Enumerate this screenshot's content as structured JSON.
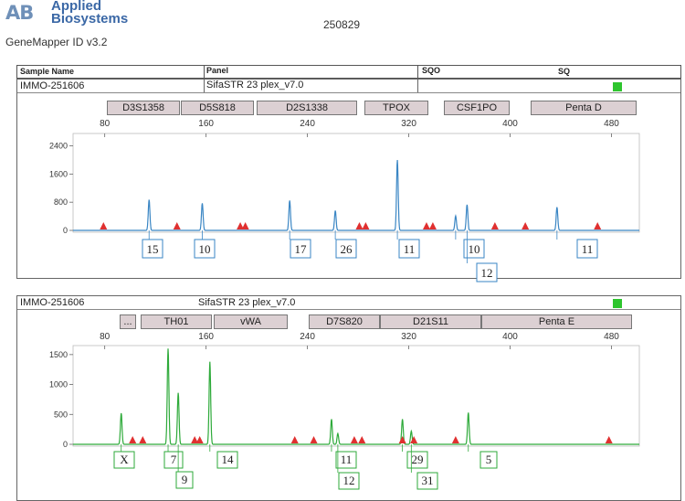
{
  "header": {
    "logo_mark": "AB",
    "logo_line1": "Applied",
    "logo_line2": "Biosystems",
    "software": "GeneMapper ID v3.2",
    "run_id": "250829"
  },
  "table_header": {
    "sample_name": "Sample Name",
    "panel": "Panel",
    "sqo": "SQO",
    "sq": "SQ"
  },
  "colors": {
    "blue_trace": "#3a86c4",
    "green_trace": "#2eaa3a",
    "marker_triangle": "#e03030",
    "status_ok": "#2ec52e",
    "marker_fill": "#dcd0d3"
  },
  "chart_data": [
    {
      "type": "line",
      "sample": "IMMO-251606",
      "panel": "SifaSTR 23 plex_v7.0",
      "dye": "blue",
      "markers": [
        "D3S1358",
        "D5S818",
        "D2S1338",
        "TPOX",
        "CSF1PO",
        "Penta D"
      ],
      "x_ticks": [
        80,
        160,
        240,
        320,
        400,
        480
      ],
      "y_ticks": [
        0,
        800,
        1600,
        2400
      ],
      "ylim": [
        0,
        2700
      ],
      "xlim": [
        55,
        502
      ],
      "peaks": [
        {
          "x": 115,
          "y": 870,
          "allele": "15"
        },
        {
          "x": 157,
          "y": 770,
          "allele": "10"
        },
        {
          "x": 226,
          "y": 850,
          "allele": "17"
        },
        {
          "x": 262,
          "y": 560,
          "allele": "26"
        },
        {
          "x": 311,
          "y": 2000,
          "allele": "11"
        },
        {
          "x": 357,
          "y": 410,
          "allele": "10"
        },
        {
          "x": 366,
          "y": 730,
          "allele": "12"
        },
        {
          "x": 437,
          "y": 660,
          "allele": "11"
        }
      ],
      "bin_triangles": [
        79,
        137,
        187,
        191,
        281,
        286,
        334,
        339,
        388,
        412,
        469
      ]
    },
    {
      "type": "line",
      "sample": "IMMO-251606",
      "panel": "SifaSTR 23 plex_v7.0",
      "dye": "green",
      "markers": [
        "...",
        "TH01",
        "vWA",
        "D7S820",
        "D21S11",
        "Penta E"
      ],
      "x_ticks": [
        80,
        160,
        240,
        320,
        400,
        480
      ],
      "y_ticks": [
        0,
        500,
        1000,
        1500
      ],
      "ylim": [
        0,
        1620
      ],
      "xlim": [
        55,
        502
      ],
      "peaks": [
        {
          "x": 93,
          "y": 520,
          "allele": "X"
        },
        {
          "x": 130,
          "y": 1600,
          "allele": "7"
        },
        {
          "x": 138,
          "y": 860,
          "allele": "9"
        },
        {
          "x": 163,
          "y": 1380,
          "allele": "14"
        },
        {
          "x": 259,
          "y": 420,
          "allele": "11"
        },
        {
          "x": 264,
          "y": 180,
          "allele": "12"
        },
        {
          "x": 315,
          "y": 420,
          "allele": "29"
        },
        {
          "x": 322,
          "y": 220,
          "allele": "31"
        },
        {
          "x": 367,
          "y": 530,
          "allele": "5"
        }
      ],
      "bin_triangles": [
        102,
        110,
        151,
        155,
        230,
        245,
        277,
        283,
        315,
        324,
        357,
        478
      ]
    }
  ]
}
